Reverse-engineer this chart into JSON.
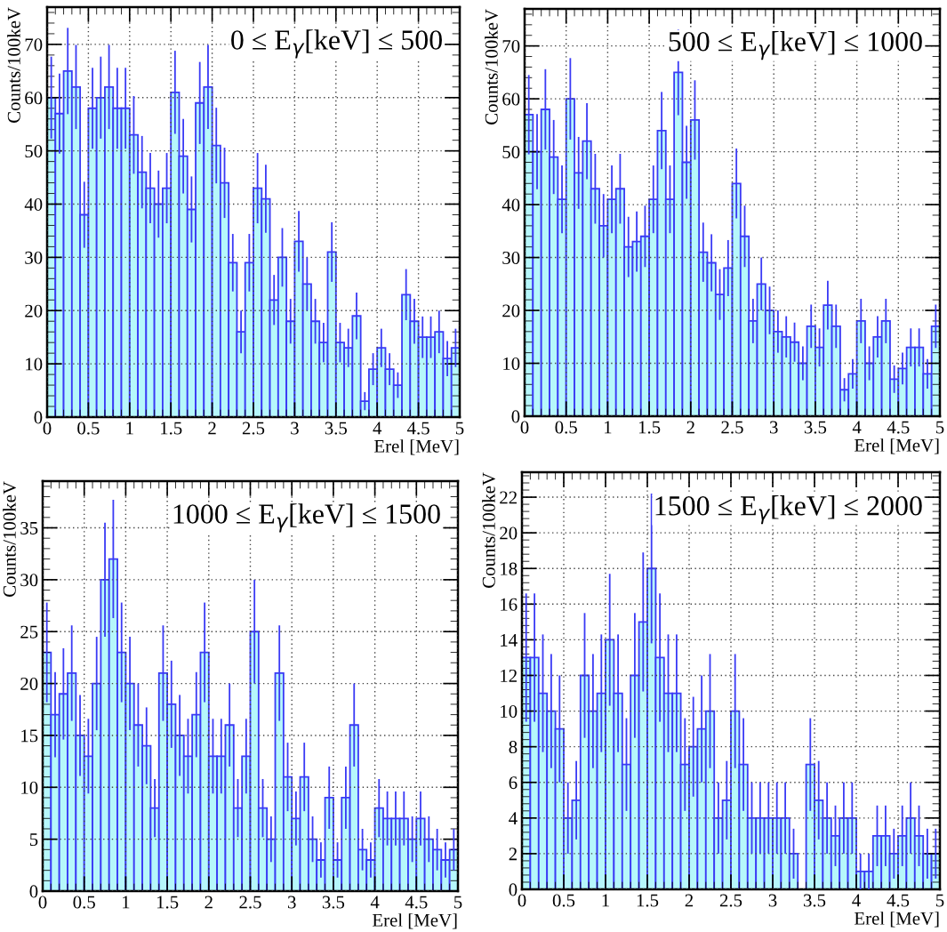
{
  "chart_data": [
    {
      "type": "histogram",
      "title": "0 ≤ E$_{γ}$[keV] ≤ 500",
      "xlabel": "Erel [MeV]",
      "ylabel": "Counts/100keV",
      "color": "#3a3af5",
      "grid": true,
      "bins": [
        0,
        0.1,
        0.2,
        0.3,
        0.4,
        0.5,
        0.6,
        0.7,
        0.8,
        0.9,
        1.0,
        1.1,
        1.2,
        1.3,
        1.4,
        1.5,
        1.6,
        1.7,
        1.8,
        1.9,
        2.0,
        2.1,
        2.2,
        2.3,
        2.4,
        2.5,
        2.6,
        2.7,
        2.8,
        2.9,
        3.0,
        3.1,
        3.2,
        3.3,
        3.4,
        3.5,
        3.6,
        3.7,
        3.8,
        3.9,
        4.0,
        4.1,
        4.2,
        4.3,
        4.4,
        4.5,
        4.6,
        4.7,
        4.8,
        4.9,
        5.0
      ],
      "series": [
        {
          "color": "#b6f7fb",
          "values": [
            60,
            57,
            65,
            62,
            38,
            58,
            60,
            62,
            58,
            58,
            53,
            46,
            43,
            40,
            43,
            61,
            49,
            39,
            59,
            62,
            51,
            44,
            29,
            16,
            29,
            43,
            41,
            22,
            30,
            18,
            33,
            25,
            18,
            14,
            31,
            14,
            13,
            19,
            3,
            9,
            13,
            9,
            6,
            23,
            18,
            15,
            15,
            16,
            11,
            13
          ],
          "errors": [
            7.7,
            7.5,
            8.1,
            7.9,
            6.2,
            7.6,
            7.7,
            7.9,
            7.6,
            7.6,
            7.3,
            6.8,
            6.6,
            6.3,
            6.6,
            7.8,
            7,
            6.2,
            7.7,
            7.9,
            7.1,
            6.6,
            5.4,
            4,
            5.4,
            6.6,
            6.4,
            4.7,
            5.5,
            4.2,
            5.7,
            5,
            4.2,
            3.7,
            5.6,
            3.7,
            3.6,
            4.4,
            1.7,
            3,
            3.6,
            3,
            2.4,
            4.8,
            4.2,
            3.9,
            3.9,
            4,
            3.3,
            3.6
          ]
        }
      ],
      "xlim": [
        0,
        5
      ],
      "xticks": [
        0,
        0.5,
        1,
        1.5,
        2,
        2.5,
        3,
        3.5,
        4,
        4.5,
        5
      ],
      "ylim": [
        0,
        77
      ],
      "yticks": [
        0,
        10,
        20,
        30,
        40,
        50,
        60,
        70
      ]
    },
    {
      "type": "histogram",
      "title": "500 ≤ E$_{γ}$[keV] ≤ 1000",
      "xlabel": "Erel [MeV]",
      "ylabel": "Counts/100keV",
      "color": "#3a3af5",
      "grid": true,
      "bins": [
        0,
        0.1,
        0.2,
        0.3,
        0.4,
        0.5,
        0.6,
        0.7,
        0.8,
        0.9,
        1.0,
        1.1,
        1.2,
        1.3,
        1.4,
        1.5,
        1.6,
        1.7,
        1.8,
        1.9,
        2.0,
        2.1,
        2.2,
        2.3,
        2.4,
        2.5,
        2.6,
        2.7,
        2.8,
        2.9,
        3.0,
        3.1,
        3.2,
        3.3,
        3.4,
        3.5,
        3.6,
        3.7,
        3.8,
        3.9,
        4.0,
        4.1,
        4.2,
        4.3,
        4.4,
        4.5,
        4.6,
        4.7,
        4.8,
        4.9,
        5.0
      ],
      "series": [
        {
          "color": "#b6f7fb",
          "values": [
            57,
            50,
            58,
            49,
            41,
            60,
            46,
            52,
            43,
            36,
            41,
            43,
            32,
            33,
            34,
            41,
            54,
            41,
            65,
            48,
            56,
            31,
            29,
            23,
            28,
            44,
            34,
            18,
            25,
            20,
            16,
            15,
            14,
            10,
            17,
            13,
            21,
            17,
            5,
            8,
            18,
            10,
            15,
            18,
            7,
            9,
            13,
            13,
            8,
            17
          ],
          "errors": [
            7.5,
            7.1,
            7.6,
            7,
            6.4,
            7.7,
            6.8,
            7.2,
            6.6,
            6,
            6.4,
            6.6,
            5.7,
            5.7,
            5.8,
            6.4,
            7.3,
            6.4,
            8.1,
            6.9,
            7.5,
            5.6,
            5.4,
            4.8,
            5.3,
            6.6,
            5.8,
            4.2,
            5,
            4.5,
            4,
            3.9,
            3.7,
            3.2,
            4.1,
            3.6,
            4.6,
            4.1,
            2.2,
            2.8,
            4.2,
            3.2,
            3.9,
            4.2,
            2.6,
            3,
            3.6,
            3.6,
            2.8,
            4.1
          ]
        }
      ],
      "xlim": [
        0,
        5
      ],
      "xticks": [
        0,
        0.5,
        1,
        1.5,
        2,
        2.5,
        3,
        3.5,
        4,
        4.5,
        5
      ],
      "ylim": [
        0,
        77
      ],
      "yticks": [
        0,
        10,
        20,
        30,
        40,
        50,
        60,
        70
      ]
    },
    {
      "type": "histogram",
      "title": "1000 ≤ E$_{γ}$[keV] ≤ 1500",
      "xlabel": "Erel [MeV]",
      "ylabel": "Counts/100keV",
      "color": "#3a3af5",
      "grid": true,
      "bins": [
        0,
        0.1,
        0.2,
        0.3,
        0.4,
        0.5,
        0.6,
        0.7,
        0.8,
        0.9,
        1.0,
        1.1,
        1.2,
        1.3,
        1.4,
        1.5,
        1.6,
        1.7,
        1.8,
        1.9,
        2.0,
        2.1,
        2.2,
        2.3,
        2.4,
        2.5,
        2.6,
        2.7,
        2.8,
        2.9,
        3.0,
        3.1,
        3.2,
        3.3,
        3.4,
        3.5,
        3.6,
        3.7,
        3.8,
        3.9,
        4.0,
        4.1,
        4.2,
        4.3,
        4.4,
        4.5,
        4.6,
        4.7,
        4.8,
        4.9,
        5.0
      ],
      "series": [
        {
          "color": "#b6f7fb",
          "values": [
            23,
            17,
            19,
            21,
            15,
            13,
            20,
            30,
            32,
            23,
            20,
            16,
            14,
            8,
            21,
            18,
            15,
            13,
            17,
            23,
            13,
            13,
            16,
            8,
            13,
            25,
            8,
            5,
            21,
            11,
            7,
            11,
            5,
            3,
            9,
            3,
            9,
            16,
            4,
            3,
            8,
            7,
            7,
            7,
            5,
            7,
            5,
            4,
            3,
            4
          ],
          "errors": [
            4.8,
            4.1,
            4.4,
            4.6,
            3.9,
            3.6,
            4.5,
            5.5,
            5.7,
            4.8,
            4.5,
            4,
            3.7,
            2.8,
            4.6,
            4.2,
            3.9,
            3.6,
            4.1,
            4.8,
            3.6,
            3.6,
            4,
            2.8,
            3.6,
            5,
            2.8,
            2.2,
            4.6,
            3.3,
            2.6,
            3.3,
            2.2,
            1.7,
            3,
            1.7,
            3,
            4,
            2,
            1.7,
            2.8,
            2.6,
            2.6,
            2.6,
            2.2,
            2.6,
            2.2,
            2,
            1.7,
            2
          ]
        }
      ],
      "xlim": [
        0,
        5
      ],
      "xticks": [
        0,
        0.5,
        1,
        1.5,
        2,
        2.5,
        3,
        3.5,
        4,
        4.5,
        5
      ],
      "ylim": [
        0,
        39.5
      ],
      "yticks": [
        0,
        5,
        10,
        15,
        20,
        25,
        30,
        35
      ]
    },
    {
      "type": "histogram",
      "title": "1500 ≤ E$_{γ}$[keV] ≤ 2000",
      "xlabel": "Erel [MeV]",
      "ylabel": "Counts/100keV",
      "color": "#3a3af5",
      "grid": true,
      "bins": [
        0,
        0.1,
        0.2,
        0.3,
        0.4,
        0.5,
        0.6,
        0.7,
        0.8,
        0.9,
        1.0,
        1.1,
        1.2,
        1.3,
        1.4,
        1.5,
        1.6,
        1.7,
        1.8,
        1.9,
        2.0,
        2.1,
        2.2,
        2.3,
        2.4,
        2.5,
        2.6,
        2.7,
        2.8,
        2.9,
        3.0,
        3.1,
        3.2,
        3.3,
        3.4,
        3.5,
        3.6,
        3.7,
        3.8,
        3.9,
        4.0,
        4.1,
        4.2,
        4.3,
        4.4,
        4.5,
        4.6,
        4.7,
        4.8,
        4.9,
        5.0
      ],
      "series": [
        {
          "color": "#b6f7fb",
          "values": [
            13,
            13,
            11,
            10,
            9,
            4,
            5,
            12,
            10,
            11,
            14,
            11,
            7,
            12,
            15,
            18,
            13,
            11,
            11,
            7,
            8,
            9,
            10,
            4,
            5,
            10,
            7,
            4,
            4,
            4,
            4,
            4,
            2,
            0,
            7,
            5,
            4,
            3,
            4,
            4,
            1,
            1,
            3,
            3,
            2,
            3,
            4,
            3,
            2,
            2
          ],
          "errors": [
            3.6,
            3.6,
            3.3,
            3.2,
            3,
            2,
            2.2,
            3.5,
            3.2,
            3.3,
            3.7,
            3.3,
            2.6,
            3.5,
            3.9,
            4.2,
            3.6,
            3.3,
            3.3,
            2.6,
            2.8,
            3,
            3.2,
            2,
            2.2,
            3.2,
            2.6,
            2,
            2,
            2,
            2,
            2,
            1.4,
            null,
            2.6,
            2.2,
            2,
            1.7,
            2,
            2,
            1,
            1,
            1.7,
            1.7,
            1.4,
            1.7,
            2,
            1.7,
            1.4,
            1.4
          ]
        }
      ],
      "xlim": [
        0,
        5
      ],
      "xticks": [
        0,
        0.5,
        1,
        1.5,
        2,
        2.5,
        3,
        3.5,
        4,
        4.5,
        5
      ],
      "ylim": [
        0,
        23.4
      ],
      "yticks": [
        0,
        2,
        4,
        6,
        8,
        10,
        12,
        14,
        16,
        18,
        20,
        22
      ]
    }
  ]
}
